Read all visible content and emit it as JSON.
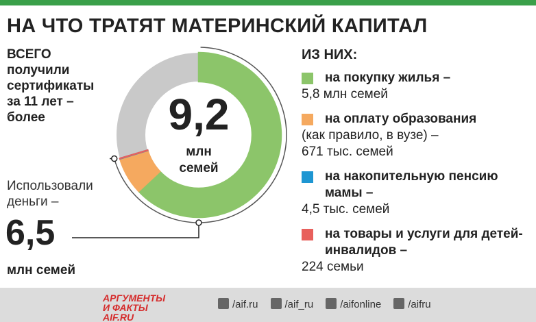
{
  "chart_data": {
    "type": "pie",
    "title": "НА ЧТО ТРАТЯТ МАТЕРИНСКИЙ КАПИТАЛ",
    "total": {
      "label_lines": [
        "ВСЕГО",
        "получили",
        "сертификаты",
        "за 11 лет –",
        "более"
      ],
      "value": 9.2,
      "value_label": "9,2",
      "unit": "млн семей"
    },
    "used": {
      "label_lines": [
        "Использовали",
        "деньги –"
      ],
      "value": 6.5,
      "value_label": "6,5",
      "unit": "млн семей"
    },
    "legend_title": "ИЗ НИХ:",
    "base_color": "#c9c9c9",
    "series": [
      {
        "name": "на покупку жилья –",
        "color": "#8cc56a",
        "values": [
          5.8
        ],
        "value_labels": [
          "5,8 млн семей"
        ]
      },
      {
        "name": "на оплату образования",
        "note": "(как правило, в вузе) –",
        "color": "#f5a95f",
        "values": [
          0.671
        ],
        "value_labels": [
          "671 тыс. семей"
        ]
      },
      {
        "name": "на накопительную пенсию мамы –",
        "color": "#1e96d2",
        "values": [
          0.0045
        ],
        "value_labels": [
          "4,5 тыс. семей"
        ]
      },
      {
        "name": "на товары и услуги для детей-инвалидов –",
        "color": "#e8605c",
        "values": [
          0.000224
        ],
        "value_labels": [
          "224 семьи"
        ]
      }
    ]
  },
  "footer": {
    "logo_lines": [
      "АРГУМЕНТЫ",
      "И ФАКТЫ",
      "AIF.RU"
    ],
    "links": [
      "/aif.ru",
      "/aif_ru",
      "/aifonline",
      "/aifru"
    ]
  }
}
